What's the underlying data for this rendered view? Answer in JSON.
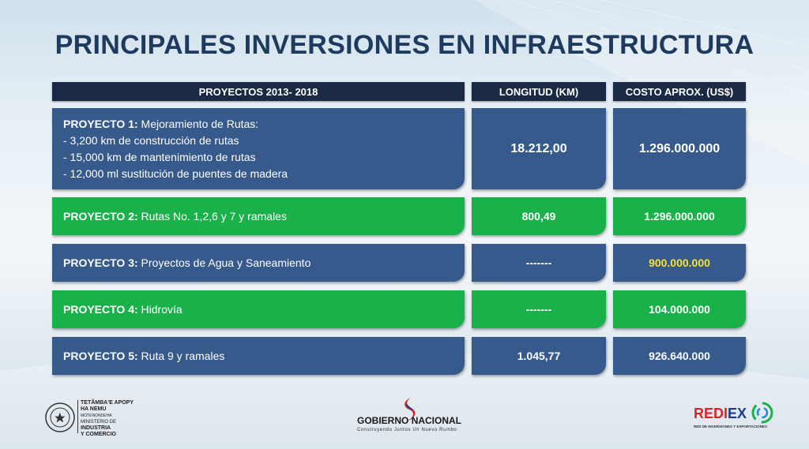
{
  "title": "PRINCIPALES INVERSIONES EN INFRAESTRUCTURA",
  "headers": {
    "projects": "PROYECTOS 2013- 2018",
    "length": "LONGITUD  (KM)",
    "cost": "COSTO APROX. (US$)"
  },
  "rows": [
    {
      "label": "PROYECTO 1:",
      "name": "Mejoramiento de Rutas:",
      "details": [
        "- 3,200 km de construcción de rutas",
        "- 15,000 km de mantenimiento de rutas",
        "- 12,000 ml sustitución de puentes de madera"
      ],
      "length": "18.212,00",
      "cost": "1.296.000.000"
    },
    {
      "label": "PROYECTO 2:",
      "name": "Rutas No. 1,2,6 y 7 y ramales",
      "length": "800,49",
      "cost": "1.296.000.000"
    },
    {
      "label": "PROYECTO 3:",
      "name": "Proyectos de Agua y Saneamiento",
      "length": "-------",
      "cost": "900.000.000"
    },
    {
      "label": "PROYECTO 4:",
      "name": "Hidrovía",
      "length": "-------",
      "cost": "104.000.000"
    },
    {
      "label": "PROYECTO 5:",
      "name": "Ruta 9 y ramales",
      "length": "1.045,77",
      "cost": "926.640.000"
    }
  ],
  "footer": {
    "left": {
      "line1": "TETÃMBAʼE APOPY",
      "line2": "HA NEMU",
      "line3": "MOTENONDEHA",
      "line4": "MINISTERIO DE",
      "line5": "INDUSTRIA",
      "line6": "Y COMERCIO"
    },
    "center": {
      "word1": "GOBIERNO",
      "word2": "NACIONAL",
      "tagline": "Construyendo Juntos Un Nuevo Rumbo"
    },
    "right": {
      "brand_a": "REDI",
      "brand_b": "EX",
      "tagline": "RED DE INVERSIONES Y EXPORTACIONES"
    }
  },
  "colors": {
    "title": "#1f3a5f",
    "header_bg": "#1a2a45",
    "blue_cell": "#375a8c",
    "green_cell": "#19b24a",
    "highlight": "#f4e23a"
  }
}
